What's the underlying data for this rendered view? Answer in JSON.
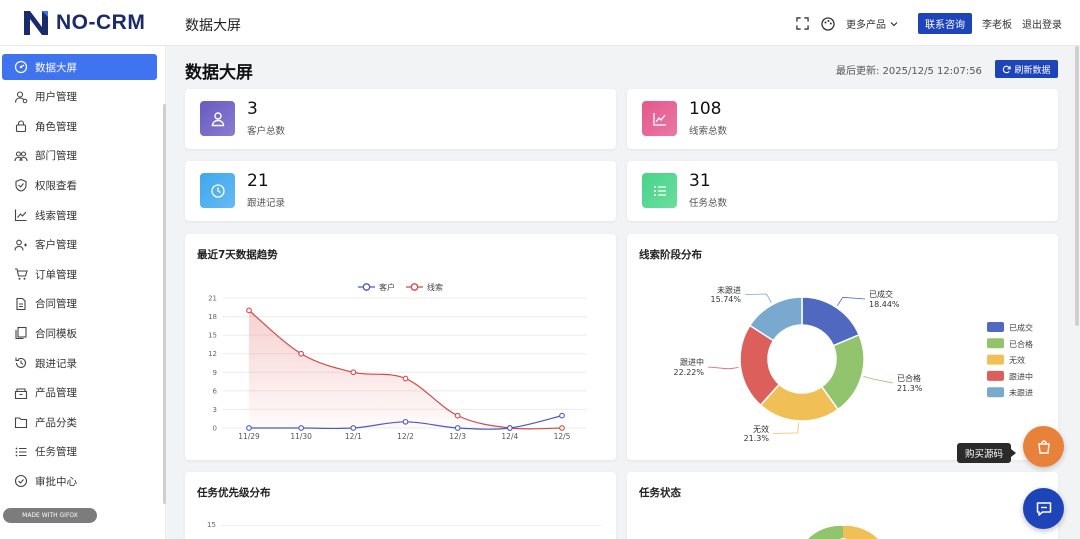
{
  "app": {
    "logo_text": "NO-CRM",
    "page_heading": "数据大屏"
  },
  "topbar": {
    "more_products": "更多产品",
    "consult": "联系咨询",
    "user": "李老板",
    "logout": "退出登录"
  },
  "sidebar": {
    "items": [
      {
        "label": "数据大屏",
        "icon": "dashboard-icon",
        "active": true
      },
      {
        "label": "用户管理",
        "icon": "user-icon"
      },
      {
        "label": "角色管理",
        "icon": "lock-icon"
      },
      {
        "label": "部门管理",
        "icon": "team-icon"
      },
      {
        "label": "权限查看",
        "icon": "shield-icon"
      },
      {
        "label": "线索管理",
        "icon": "line-chart-icon"
      },
      {
        "label": "客户管理",
        "icon": "customer-icon"
      },
      {
        "label": "订单管理",
        "icon": "cart-icon"
      },
      {
        "label": "合同管理",
        "icon": "contract-icon"
      },
      {
        "label": "合同模板",
        "icon": "template-icon"
      },
      {
        "label": "跟进记录",
        "icon": "history-icon"
      },
      {
        "label": "产品管理",
        "icon": "box-icon"
      },
      {
        "label": "产品分类",
        "icon": "folder-icon"
      },
      {
        "label": "任务管理",
        "icon": "list-icon"
      },
      {
        "label": "审批中心",
        "icon": "check-circle-icon"
      }
    ],
    "made_with": "MADE WITH GIFOX"
  },
  "main": {
    "title": "数据大屏",
    "last_update": "最后更新: 2025/12/5 12:07:56",
    "refresh": "刷新数据"
  },
  "stats": [
    {
      "value": "3",
      "label": "客户总数",
      "color": "#6a5bc2",
      "icon": "user-icon"
    },
    {
      "value": "108",
      "label": "线索总数",
      "color": "#e4578d",
      "icon": "line-chart-icon"
    },
    {
      "value": "21",
      "label": "跟进记录",
      "color": "#3fa8ee",
      "icon": "clock-icon"
    },
    {
      "value": "31",
      "label": "任务总数",
      "color": "#47d488",
      "icon": "list-icon"
    }
  ],
  "panels": {
    "trend_title": "最近7天数据趋势",
    "stage_title": "线索阶段分布",
    "priority_title": "任务优先级分布",
    "status_title": "任务状态",
    "priority_first_tick": "15"
  },
  "chart_data": [
    {
      "type": "line",
      "title": "最近7天数据趋势",
      "x": [
        "11/29",
        "11/30",
        "12/1",
        "12/2",
        "12/3",
        "12/4",
        "12/5"
      ],
      "yticks": [
        0,
        3,
        6,
        9,
        12,
        15,
        18,
        21
      ],
      "ylim": [
        0,
        21
      ],
      "series": [
        {
          "name": "客户",
          "color": "#4a5bc4",
          "values": [
            0,
            0,
            0,
            1,
            0,
            0,
            2
          ]
        },
        {
          "name": "线索",
          "color": "#d24a4a",
          "values": [
            19,
            12,
            9,
            8,
            2,
            0,
            0
          ]
        }
      ],
      "legend": "top-center"
    },
    {
      "type": "pie",
      "title": "线索阶段分布",
      "slices": [
        {
          "name": "已成交",
          "label": "已成交",
          "percent": "18.44%",
          "value": 18.44,
          "color": "#5068bf"
        },
        {
          "name": "已合格",
          "label": "已合格",
          "percent": "21.3%",
          "value": 21.3,
          "color": "#91c46c"
        },
        {
          "name": "无效",
          "label": "无效",
          "percent": "21.3%",
          "value": 21.3,
          "color": "#f0c056"
        },
        {
          "name": "跟进中",
          "label": "跟进中",
          "percent": "22.22%",
          "value": 22.22,
          "color": "#dc5f5b"
        },
        {
          "name": "未跟进",
          "label": "未跟进",
          "percent": "15.74%",
          "value": 15.74,
          "color": "#79a9cf"
        }
      ],
      "legend": "right"
    }
  ],
  "floating": {
    "buy_tip": "购买源码"
  }
}
